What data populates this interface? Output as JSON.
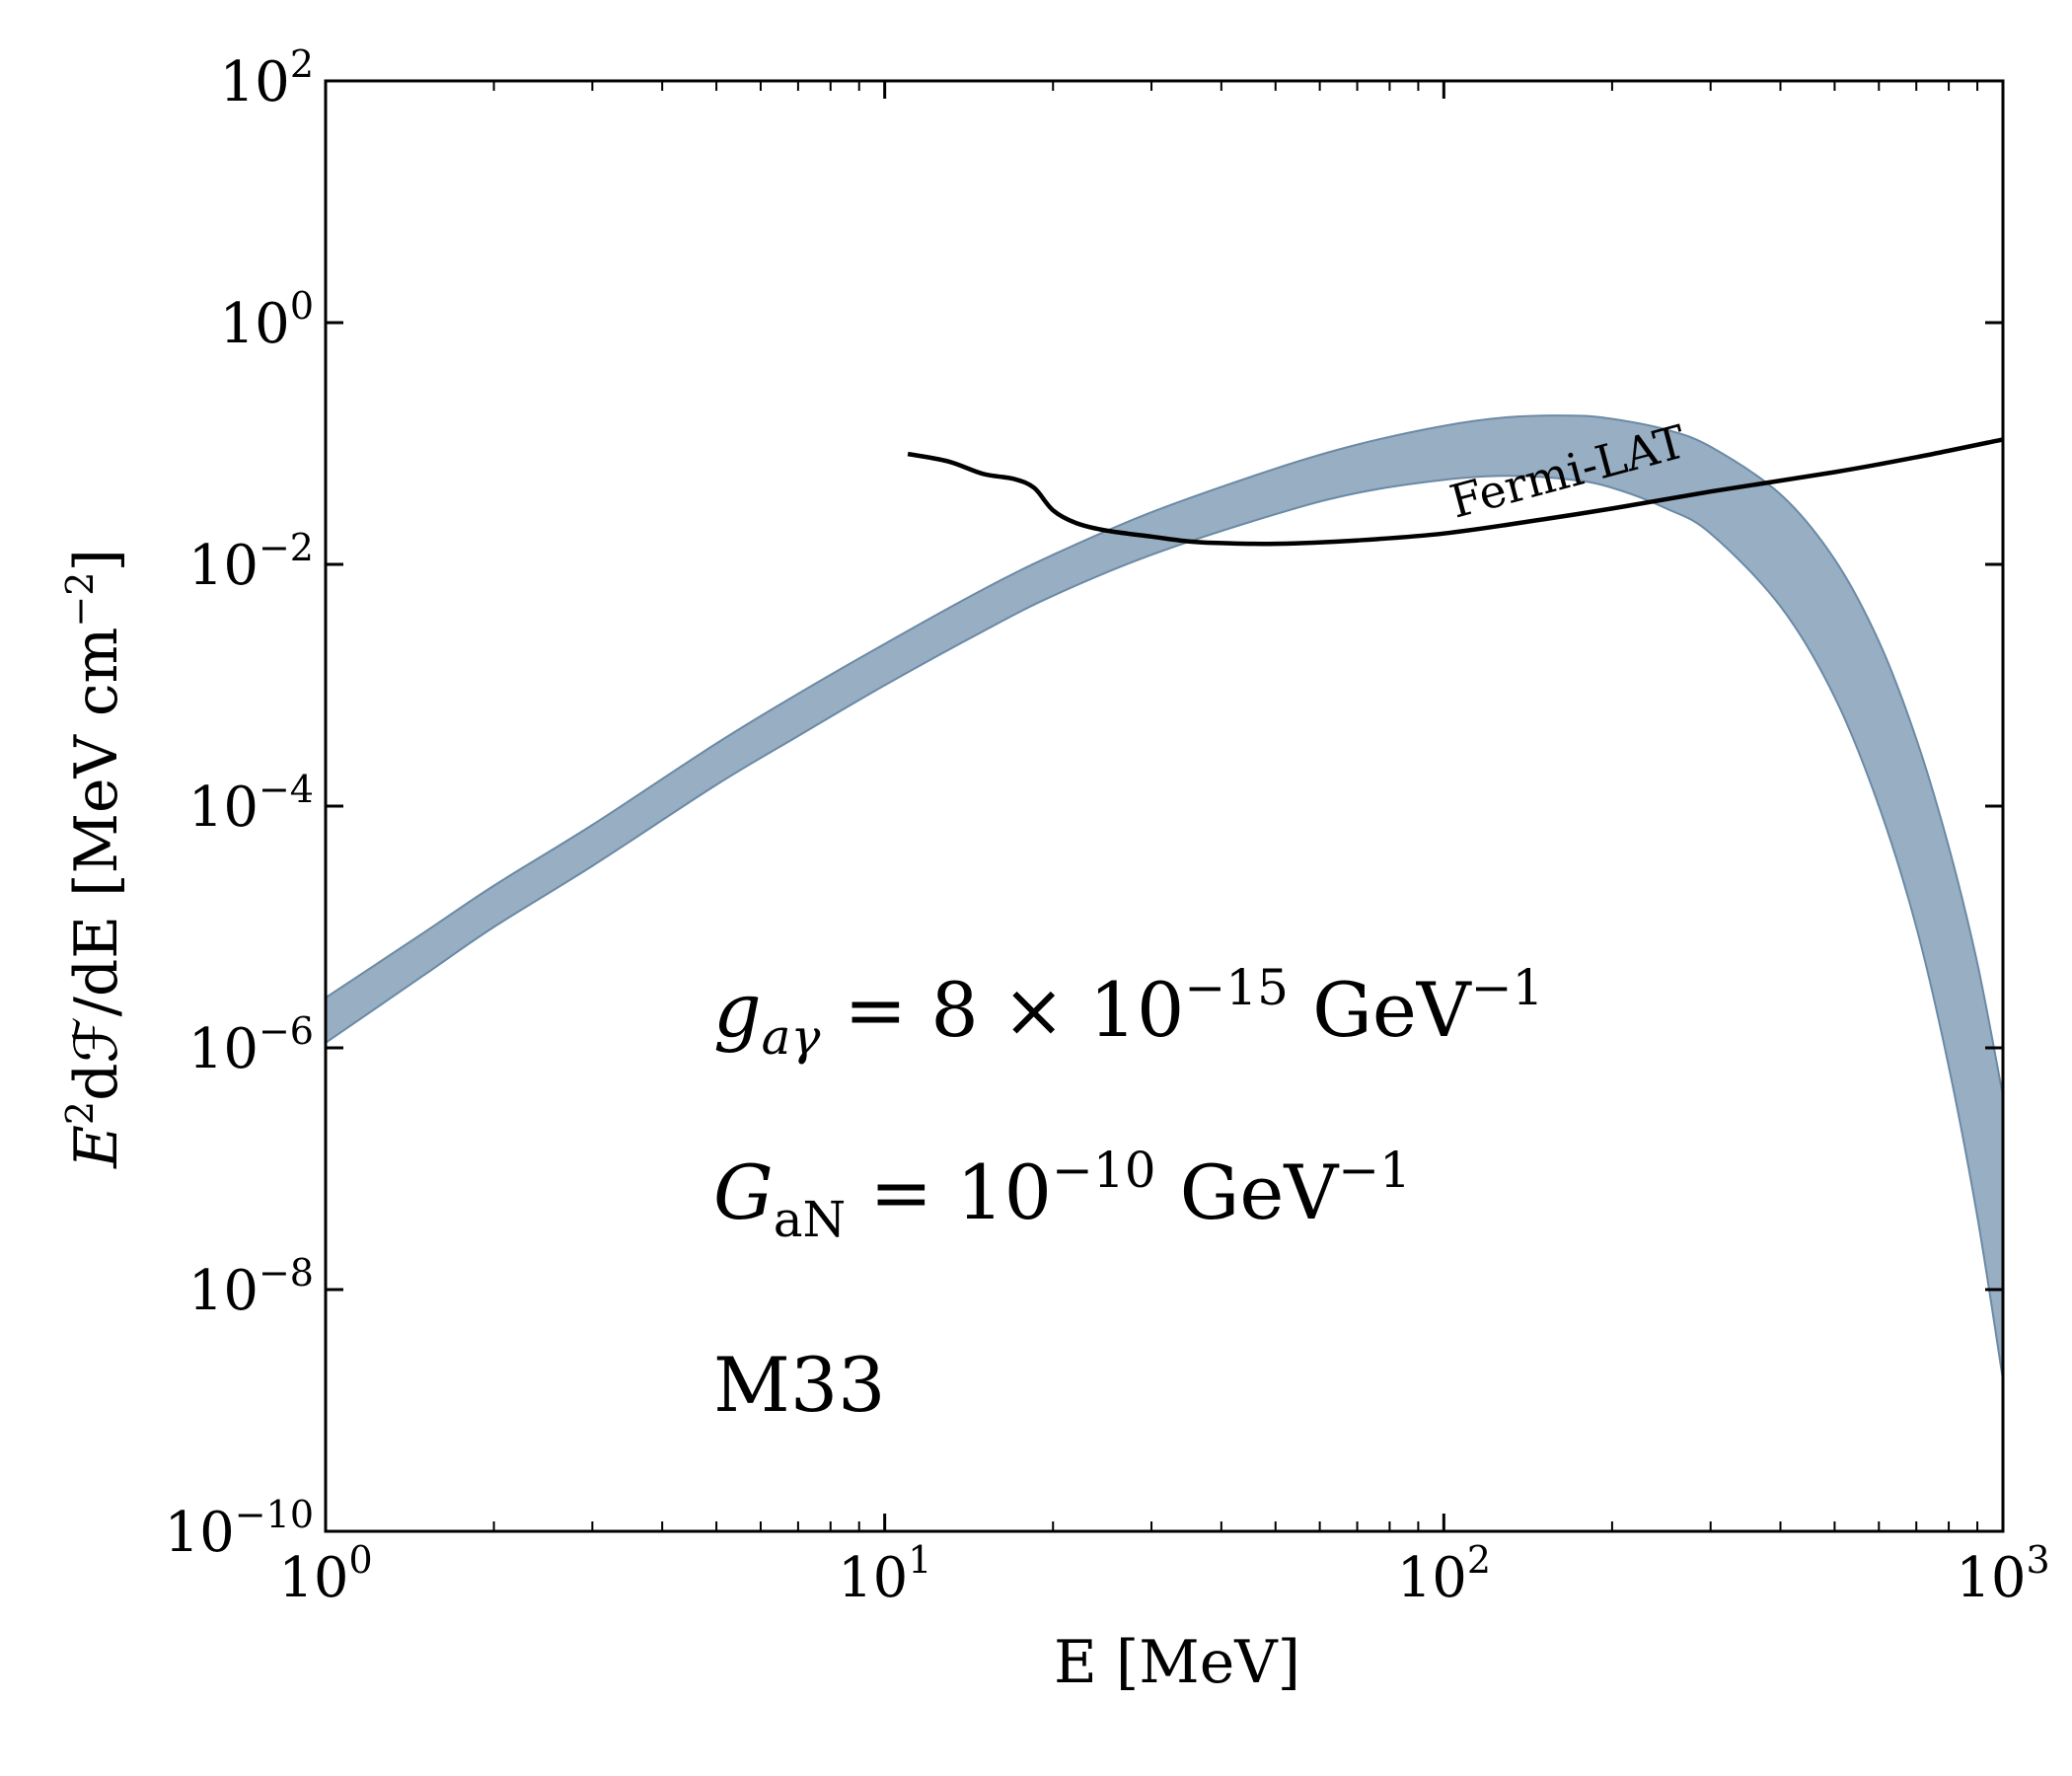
{
  "chart_data": {
    "type": "area",
    "xscale": "log",
    "yscale": "log",
    "xlim": [
      1,
      1000
    ],
    "ylim": [
      1e-10,
      100
    ],
    "xlabel": "E [MeV]",
    "ylabel": {
      "base": "E",
      "base_sup": "2",
      "rest": "dℱ/dE [MeV cm",
      "rest_sup": "−2",
      "close": "]"
    },
    "x_ticks": [
      {
        "value": 1,
        "base": "10",
        "exp": "0"
      },
      {
        "value": 10,
        "base": "10",
        "exp": "1"
      },
      {
        "value": 100,
        "base": "10",
        "exp": "2"
      },
      {
        "value": 1000,
        "base": "10",
        "exp": "3"
      }
    ],
    "y_ticks": [
      {
        "value": 1e-10,
        "base": "10",
        "exp": "−10"
      },
      {
        "value": 1e-08,
        "base": "10",
        "exp": "−8"
      },
      {
        "value": 1e-06,
        "base": "10",
        "exp": "−6"
      },
      {
        "value": 0.0001,
        "base": "10",
        "exp": "−4"
      },
      {
        "value": 0.01,
        "base": "10",
        "exp": "−2"
      },
      {
        "value": 1,
        "base": "10",
        "exp": "0"
      },
      {
        "value": 100,
        "base": "10",
        "exp": "2"
      }
    ],
    "series": [
      {
        "kind": "band",
        "color": "#97aec3",
        "edge_color": "#6b8aa6",
        "x": [
          1,
          1.5,
          2,
          3,
          5,
          7,
          10,
          15,
          20,
          30,
          50,
          70,
          100,
          130,
          170,
          200,
          250,
          300,
          400,
          500,
          600,
          700,
          800,
          900,
          1000
        ],
        "lower": [
          1.1e-06,
          4e-06,
          1e-05,
          3.2e-05,
          0.00015,
          0.00038,
          0.001,
          0.0028,
          0.0055,
          0.012,
          0.026,
          0.039,
          0.05,
          0.054,
          0.05,
          0.043,
          0.029,
          0.018,
          0.0045,
          0.0008,
          0.0001,
          1e-05,
          7e-07,
          4e-08,
          1.8e-09
        ],
        "upper": [
          2.6e-06,
          9e-06,
          2.2e-05,
          7e-05,
          0.00033,
          0.00085,
          0.0022,
          0.0062,
          0.012,
          0.027,
          0.062,
          0.098,
          0.14,
          0.165,
          0.17,
          0.16,
          0.13,
          0.094,
          0.038,
          0.011,
          0.0023,
          0.00036,
          4.6e-05,
          5e-06,
          4e-07
        ]
      },
      {
        "name": "Fermi-LAT",
        "kind": "line",
        "color": "#000000",
        "x": [
          11,
          13,
          15,
          17,
          18.5,
          20,
          22,
          25,
          30,
          35,
          40,
          50,
          70,
          100,
          150,
          200,
          300,
          500,
          700,
          1000
        ],
        "y": [
          0.082,
          0.071,
          0.056,
          0.051,
          0.043,
          0.028,
          0.022,
          0.019,
          0.017,
          0.0155,
          0.015,
          0.0148,
          0.0158,
          0.018,
          0.0235,
          0.029,
          0.04,
          0.058,
          0.077,
          0.108
        ]
      }
    ],
    "curve_label": "Fermi-LAT",
    "annotations": {
      "g_ag": {
        "sym": "g",
        "sub": "aγ",
        "mid": " = 8 × 10",
        "sup1": "−15",
        "unit": " GeV",
        "sup2": "−1"
      },
      "G_aN": {
        "sym": "G",
        "sub": "aN",
        "mid": " = 10",
        "sup1": "−10",
        "unit": " GeV",
        "sup2": "−1"
      },
      "source": "M33"
    }
  }
}
